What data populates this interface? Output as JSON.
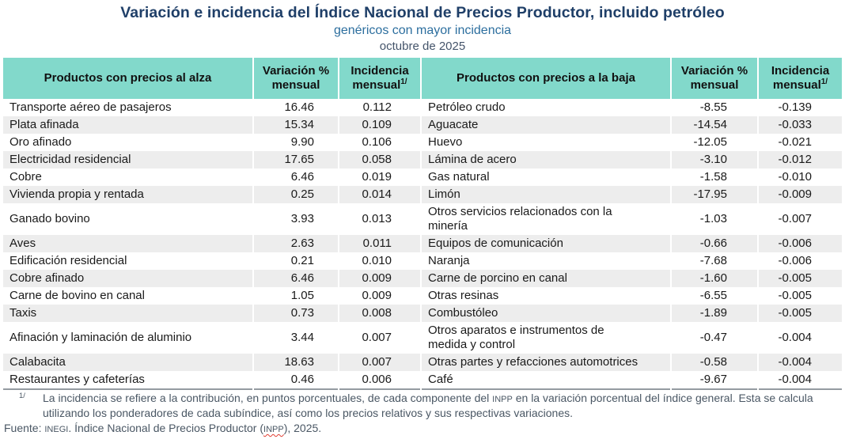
{
  "title": "Variación e incidencia del Índice Nacional de Precios Productor, incluido petróleo",
  "subtitle": "genéricos con mayor incidencia",
  "date_line": "octubre de 2025",
  "colors": {
    "header_teal": "#82d9cb",
    "stripe_gray": "#ededed",
    "title_navy": "#1f3f68",
    "subtitle_blue": "#2c6e9e",
    "footnote_gray": "#4a5764",
    "squiggle_red": "#e03c31"
  },
  "table": {
    "headers": {
      "up_products": "Productos con precios al alza",
      "variation": "Variación %\nmensual",
      "incidence": "Incidencia\nmensual",
      "incidence_sup": "1/",
      "down_products": "Productos con precios a la baja"
    },
    "rows": [
      {
        "up": {
          "name": "Transporte aéreo de pasajeros",
          "var": "16.46",
          "inc": "0.112"
        },
        "down": {
          "name": "Petróleo crudo",
          "var": "-8.55",
          "inc": "-0.139"
        }
      },
      {
        "up": {
          "name": "Plata afinada",
          "var": "15.34",
          "inc": "0.109"
        },
        "down": {
          "name": "Aguacate",
          "var": "-14.54",
          "inc": "-0.033"
        }
      },
      {
        "up": {
          "name": "Oro afinado",
          "var": "9.90",
          "inc": "0.106"
        },
        "down": {
          "name": "Huevo",
          "var": "-12.05",
          "inc": "-0.021"
        }
      },
      {
        "up": {
          "name": "Electricidad residencial",
          "var": "17.65",
          "inc": "0.058"
        },
        "down": {
          "name": "Lámina de acero",
          "var": "-3.10",
          "inc": "-0.012"
        }
      },
      {
        "up": {
          "name": "Cobre",
          "var": "6.46",
          "inc": "0.019"
        },
        "down": {
          "name": "Gas natural",
          "var": "-1.58",
          "inc": "-0.010"
        }
      },
      {
        "up": {
          "name": "Vivienda propia y rentada",
          "var": "0.25",
          "inc": "0.014"
        },
        "down": {
          "name": "Limón",
          "var": "-17.95",
          "inc": "-0.009"
        }
      },
      {
        "up": {
          "name": "Ganado bovino",
          "var": "3.93",
          "inc": "0.013"
        },
        "down": {
          "name": "Otros servicios relacionados con la\nminería",
          "var": "-1.03",
          "inc": "-0.007"
        }
      },
      {
        "up": {
          "name": "Aves",
          "var": "2.63",
          "inc": "0.011"
        },
        "down": {
          "name": "Equipos de comunicación",
          "var": "-0.66",
          "inc": "-0.006"
        }
      },
      {
        "up": {
          "name": "Edificación residencial",
          "var": "0.21",
          "inc": "0.010"
        },
        "down": {
          "name": "Naranja",
          "var": "-7.68",
          "inc": "-0.006"
        }
      },
      {
        "up": {
          "name": "Cobre afinado",
          "var": "6.46",
          "inc": "0.009"
        },
        "down": {
          "name": "Carne de porcino en canal",
          "var": "-1.60",
          "inc": "-0.005"
        }
      },
      {
        "up": {
          "name": "Carne de bovino en canal",
          "var": "1.05",
          "inc": "0.009"
        },
        "down": {
          "name": "Otras resinas",
          "var": "-6.55",
          "inc": "-0.005"
        }
      },
      {
        "up": {
          "name": "Taxis",
          "var": "0.73",
          "inc": "0.008"
        },
        "down": {
          "name": "Combustóleo",
          "var": "-1.89",
          "inc": "-0.005"
        }
      },
      {
        "up": {
          "name": "Afinación y laminación de aluminio",
          "var": "3.44",
          "inc": "0.007"
        },
        "down": {
          "name": "Otros aparatos e instrumentos de\nmedida y control",
          "var": "-0.47",
          "inc": "-0.004"
        }
      },
      {
        "up": {
          "name": "Calabacita",
          "var": "18.63",
          "inc": "0.007"
        },
        "down": {
          "name": "Otras partes y refacciones automotrices",
          "var": "-0.58",
          "inc": "-0.004"
        }
      },
      {
        "up": {
          "name": "Restaurantes y cafeterías",
          "var": "0.46",
          "inc": "0.006"
        },
        "down": {
          "name": "Café",
          "var": "-9.67",
          "inc": "-0.004"
        }
      }
    ]
  },
  "footnote": {
    "marker": "1/",
    "text_before_inpp": "La incidencia se refiere a la contribución, en puntos porcentuales, de cada componente del ",
    "inpp": "INPP",
    "text_after_inpp": " en la variación porcentual del índice general. Esta se calcula utilizando los ponderadores de cada subíndice, así como los precios relativos y sus respectivas variaciones."
  },
  "source": {
    "label": "Fuente: ",
    "inegi": "INEGI",
    "text_mid": ". Índice Nacional de Precios Productor (",
    "inpp": "INPP",
    "text_end": "), 2025."
  }
}
